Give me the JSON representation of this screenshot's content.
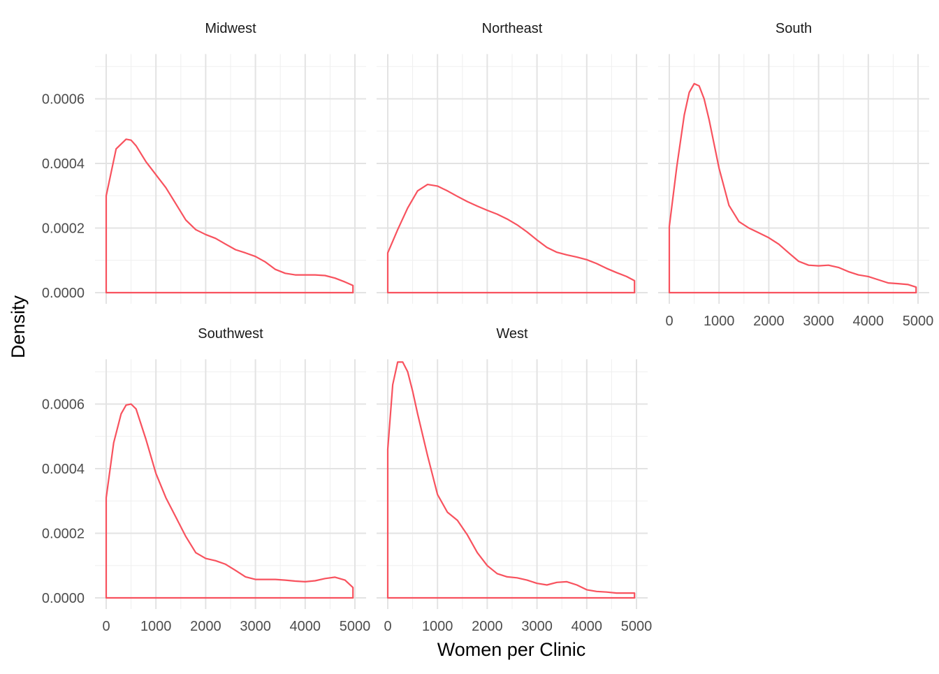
{
  "chart_data": {
    "type": "area",
    "xlabel": "Women per Clinic",
    "ylabel": "Density",
    "xlim": [
      0,
      5000
    ],
    "ylim": [
      0,
      0.00073
    ],
    "x_ticks": [
      0,
      1000,
      2000,
      3000,
      4000,
      5000
    ],
    "y_ticks": [
      0,
      0.0002,
      0.0004,
      0.0006
    ],
    "x_tick_labels": [
      "0",
      "1000",
      "2000",
      "3000",
      "4000",
      "5000"
    ],
    "y_tick_labels": [
      "0.0000",
      "0.0002",
      "0.0004",
      "0.0006"
    ],
    "grid": true,
    "legend": "none",
    "color": "#f8525e",
    "panels": [
      {
        "name": "Midwest",
        "x": [
          0,
          200,
          400,
          500,
          600,
          800,
          1000,
          1200,
          1400,
          1600,
          1800,
          2000,
          2200,
          2400,
          2600,
          2800,
          3000,
          3200,
          3400,
          3600,
          3800,
          4000,
          4200,
          4400,
          4600,
          4800,
          4960
        ],
        "y": [
          0.0003,
          0.000445,
          0.000475,
          0.000472,
          0.000455,
          0.000405,
          0.000365,
          0.000325,
          0.000275,
          0.000225,
          0.000195,
          0.00018,
          0.000168,
          0.00015,
          0.000133,
          0.000123,
          0.000112,
          9.5e-05,
          7.2e-05,
          6e-05,
          5.5e-05,
          5.5e-05,
          5.5e-05,
          5.3e-05,
          4.5e-05,
          3.3e-05,
          2.2e-05
        ]
      },
      {
        "name": "Northeast",
        "x": [
          0,
          200,
          400,
          600,
          800,
          1000,
          1200,
          1400,
          1600,
          1800,
          2000,
          2200,
          2400,
          2600,
          2800,
          3000,
          3200,
          3400,
          3600,
          3800,
          4000,
          4200,
          4400,
          4600,
          4800,
          4960
        ],
        "y": [
          0.000123,
          0.000195,
          0.000262,
          0.000315,
          0.000335,
          0.00033,
          0.000315,
          0.000298,
          0.000282,
          0.000268,
          0.000255,
          0.000243,
          0.000228,
          0.00021,
          0.000188,
          0.000163,
          0.00014,
          0.000125,
          0.000117,
          0.00011,
          0.000102,
          9e-05,
          7.5e-05,
          6.2e-05,
          5e-05,
          3.7e-05
        ]
      },
      {
        "name": "South",
        "x": [
          0,
          150,
          300,
          400,
          500,
          600,
          700,
          800,
          900,
          1000,
          1200,
          1400,
          1600,
          1800,
          2000,
          2200,
          2400,
          2600,
          2800,
          3000,
          3200,
          3400,
          3600,
          3800,
          4000,
          4200,
          4400,
          4600,
          4800,
          4960
        ],
        "y": [
          0.000205,
          0.00039,
          0.00055,
          0.00062,
          0.000647,
          0.00064,
          0.0006,
          0.000535,
          0.00046,
          0.000385,
          0.00027,
          0.00022,
          0.0002,
          0.000185,
          0.00017,
          0.00015,
          0.000123,
          9.7e-05,
          8.5e-05,
          8.3e-05,
          8.5e-05,
          7.8e-05,
          6.5e-05,
          5.5e-05,
          5e-05,
          4e-05,
          3e-05,
          2.8e-05,
          2.5e-05,
          1.7e-05
        ]
      },
      {
        "name": "Southwest",
        "x": [
          0,
          150,
          300,
          400,
          500,
          600,
          800,
          1000,
          1200,
          1400,
          1600,
          1800,
          2000,
          2200,
          2400,
          2600,
          2800,
          3000,
          3200,
          3400,
          3600,
          3800,
          4000,
          4200,
          4400,
          4600,
          4800,
          4960
        ],
        "y": [
          0.00031,
          0.00048,
          0.00057,
          0.000597,
          0.0006,
          0.000585,
          0.00049,
          0.000385,
          0.00031,
          0.00025,
          0.00019,
          0.00014,
          0.000122,
          0.000115,
          0.000104,
          8.5e-05,
          6.5e-05,
          5.7e-05,
          5.7e-05,
          5.7e-05,
          5.5e-05,
          5.2e-05,
          5e-05,
          5.3e-05,
          6e-05,
          6.4e-05,
          5.5e-05,
          3.2e-05
        ]
      },
      {
        "name": "West",
        "x": [
          0,
          100,
          200,
          300,
          400,
          500,
          600,
          800,
          1000,
          1200,
          1400,
          1600,
          1800,
          2000,
          2200,
          2400,
          2600,
          2800,
          3000,
          3200,
          3400,
          3600,
          3800,
          4000,
          4200,
          4400,
          4600,
          4800,
          4960
        ],
        "y": [
          0.00046,
          0.00066,
          0.00073,
          0.00073,
          0.0007,
          0.00064,
          0.00057,
          0.00044,
          0.00032,
          0.000265,
          0.00024,
          0.000195,
          0.00014,
          0.0001,
          7.5e-05,
          6.5e-05,
          6.2e-05,
          5.5e-05,
          4.5e-05,
          4e-05,
          4.8e-05,
          5e-05,
          4e-05,
          2.5e-05,
          2e-05,
          1.8e-05,
          1.5e-05,
          1.5e-05,
          1.5e-05
        ]
      }
    ]
  }
}
